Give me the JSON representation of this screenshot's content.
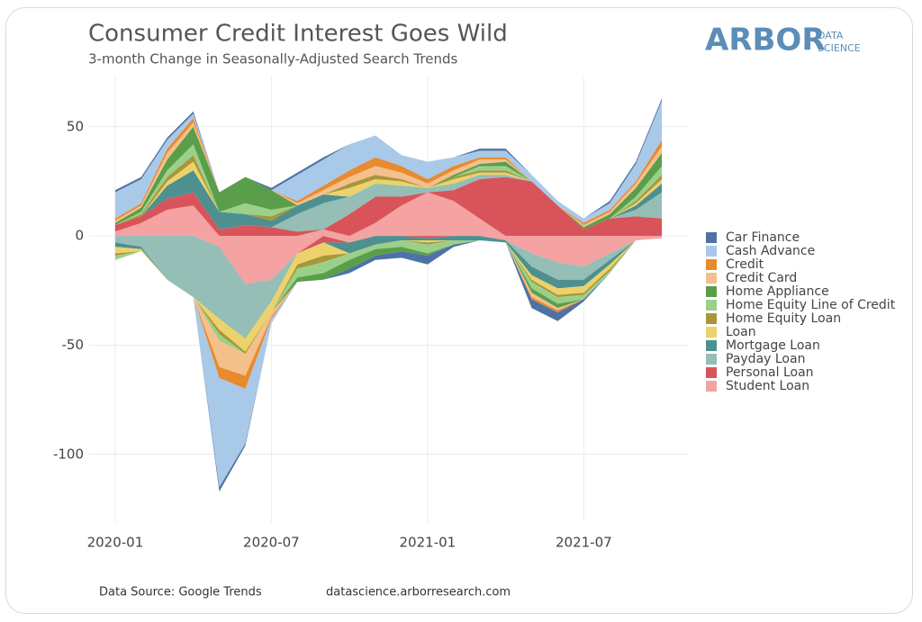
{
  "chart_data": {
    "type": "stacked-area",
    "title": "Consumer Credit Interest Goes Wild",
    "subtitle": "3-month Change in Seasonally-Adjusted Search Trends",
    "logo": {
      "name": "ARBOR",
      "tagline": [
        "DATA",
        "SCIENCE"
      ]
    },
    "source": "Data Source: Google Trends",
    "url": "datascience.arborresearch.com",
    "x": [
      "2020-01",
      "2020-02",
      "2020-03",
      "2020-04",
      "2020-05",
      "2020-06",
      "2020-07",
      "2020-08",
      "2020-09",
      "2020-10",
      "2020-11",
      "2020-12",
      "2021-01",
      "2021-02",
      "2021-03",
      "2021-04",
      "2021-05",
      "2021-06",
      "2021-07",
      "2021-08",
      "2021-09",
      "2021-10"
    ],
    "xlim": [
      "2019-12",
      "2021-11"
    ],
    "xticks": [
      "2020-01",
      "2020-07",
      "2021-01",
      "2021-07"
    ],
    "ylim": [
      -131,
      73
    ],
    "yticks": [
      -100,
      -50,
      0,
      50
    ],
    "grid": true,
    "series": [
      {
        "name": "Car Finance",
        "color": "#4e72a6",
        "values": [
          1,
          1,
          1,
          1,
          -2,
          -1,
          1,
          1,
          1,
          -2,
          -2,
          -3,
          -4,
          -1,
          1,
          1,
          -4,
          -4,
          -1,
          1,
          1,
          1
        ]
      },
      {
        "name": "Cash Advance",
        "color": "#a9c9e8",
        "values": [
          12,
          11,
          4,
          2,
          -50,
          -25,
          -2,
          12,
          12,
          12,
          10,
          5,
          8,
          4,
          3,
          3,
          3,
          2,
          2,
          3,
          8,
          18
        ]
      },
      {
        "name": "Credit",
        "color": "#e88a2e",
        "values": [
          1,
          1,
          2,
          2,
          -5,
          -6,
          -1,
          1,
          2,
          3,
          4,
          3,
          2,
          2,
          1,
          1,
          -1,
          -1,
          1,
          1,
          1,
          3
        ]
      },
      {
        "name": "Credit Card",
        "color": "#f4c08c",
        "values": [
          1,
          1,
          3,
          2,
          -12,
          -10,
          -2,
          1,
          2,
          3,
          4,
          3,
          2,
          2,
          2,
          1,
          -2,
          -1,
          1,
          1,
          2,
          3
        ]
      },
      {
        "name": "Home Appliance",
        "color": "#5a9e4a",
        "values": [
          1,
          2,
          5,
          8,
          9,
          12,
          9,
          -2,
          -3,
          -4,
          -3,
          -2,
          -1,
          1,
          1,
          2,
          -2,
          -2,
          1,
          2,
          4,
          6
        ]
      },
      {
        "name": "Home Equity Line of Credit",
        "color": "#9ad08a",
        "values": [
          -2,
          1,
          3,
          5,
          -3,
          5,
          3,
          -4,
          -5,
          -3,
          -2,
          -3,
          -4,
          -2,
          2,
          2,
          -3,
          -3,
          -2,
          -1,
          2,
          4
        ]
      },
      {
        "name": "Home Equity Loan",
        "color": "#a8963a",
        "values": [
          -1,
          1,
          2,
          3,
          -2,
          -1,
          2,
          -2,
          -3,
          2,
          2,
          1,
          -1,
          1,
          1,
          1,
          -1,
          -1,
          -1,
          -1,
          1,
          2
        ]
      },
      {
        "name": "Loan",
        "color": "#ecd26a",
        "values": [
          -3,
          -1,
          2,
          4,
          -5,
          -6,
          -5,
          -5,
          -6,
          4,
          2,
          2,
          -1,
          2,
          1,
          1,
          -2,
          -3,
          -3,
          -2,
          1,
          2
        ]
      },
      {
        "name": "Mortgage Loan",
        "color": "#4e9090",
        "values": [
          -2,
          -1,
          6,
          10,
          8,
          5,
          3,
          4,
          4,
          -5,
          -4,
          -2,
          -1,
          -2,
          -2,
          -1,
          -4,
          -4,
          -3,
          -2,
          2,
          4
        ]
      },
      {
        "name": "Payday Loan",
        "color": "#94beb6",
        "values": [
          -3,
          -5,
          -20,
          -28,
          -33,
          -25,
          -10,
          8,
          12,
          8,
          6,
          5,
          2,
          3,
          2,
          1,
          -6,
          -8,
          -6,
          -3,
          3,
          12
        ]
      },
      {
        "name": "Personal Loan",
        "color": "#d8545a",
        "values": [
          3,
          3,
          5,
          6,
          3,
          5,
          4,
          2,
          -3,
          10,
          12,
          4,
          -1,
          5,
          18,
          27,
          25,
          14,
          3,
          8,
          9,
          8
        ]
      },
      {
        "name": "Student Loan",
        "color": "#f4a2a2",
        "values": [
          2,
          6,
          12,
          14,
          -5,
          -22,
          -20,
          -8,
          3,
          -3,
          6,
          14,
          20,
          16,
          8,
          -2,
          -8,
          -12,
          -14,
          -8,
          -2,
          -1
        ]
      }
    ]
  }
}
